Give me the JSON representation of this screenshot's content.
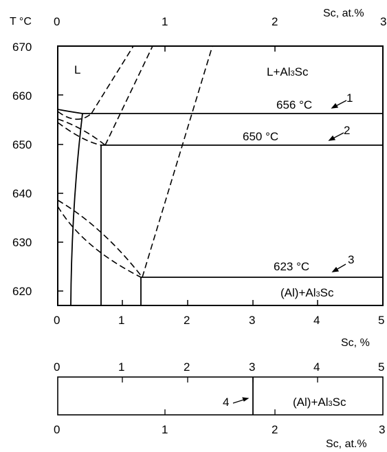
{
  "axes": {
    "y_title": "T °C",
    "top_title": "Sc, at.%",
    "bottom_title": "Sc, %",
    "lower_top_ticks": [
      "0",
      "1",
      "2",
      "3",
      "4",
      "5"
    ],
    "lower_bottom_title": "Sc, at.%",
    "y_ticks": [
      "670",
      "660",
      "650",
      "640",
      "630",
      "620"
    ],
    "top_ticks": [
      "0",
      "1",
      "2",
      "3"
    ],
    "bottom_ticks": [
      "0",
      "1",
      "2",
      "3",
      "4",
      "5"
    ],
    "lower_bottom_ticks": [
      "0",
      "1",
      "2",
      "3"
    ]
  },
  "regions": {
    "liquid": "L",
    "liquid_plus": "L+Al",
    "solid_plus_1": "(Al)+Al",
    "solid_plus_2": "(Al)+Al",
    "sub3": "3",
    "sc": "Sc"
  },
  "temperatures": {
    "t1": "656 °C",
    "t2": "650 °C",
    "t3": "623 °C"
  },
  "markers": {
    "m1": "1",
    "m2": "2",
    "m3": "3",
    "m4": "4"
  },
  "chart_data": {
    "type": "phase-diagram",
    "x_unit": "Sc, %",
    "y_unit": "T °C",
    "xlim": [
      0,
      5
    ],
    "ylim": [
      617,
      670
    ],
    "eutectic_temperatures": [
      656,
      650,
      623
    ],
    "eutectic_compositions": [
      0.4,
      0.7,
      1.3
    ],
    "lower_boundary_x": 3.1
  }
}
